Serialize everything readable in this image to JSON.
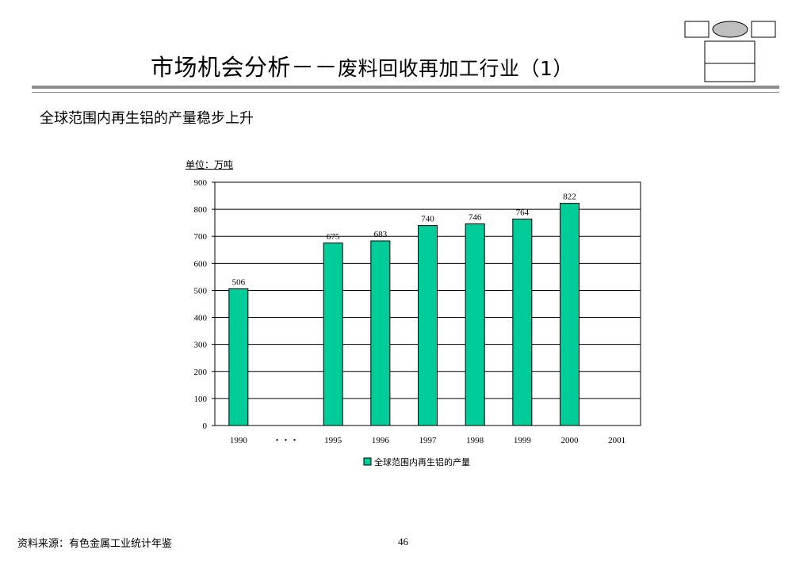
{
  "header": {
    "title_main": "市场机会分析－－",
    "title_sub": "废料回收再加工行业（1）",
    "subtitle": "全球范围内再生铝的产量稳步上升"
  },
  "unit_label": "单位：万吨",
  "chart_data": {
    "type": "bar",
    "categories": [
      "1990",
      "・・・",
      "1995",
      "1996",
      "1997",
      "1998",
      "1999",
      "2000",
      "2001"
    ],
    "series": [
      {
        "name": "全球范围内再生铝的产量",
        "values": [
          506,
          null,
          675,
          683,
          740,
          746,
          764,
          822,
          null
        ],
        "color": "#00cc99"
      }
    ],
    "ylim": [
      0,
      900
    ],
    "yticks": [
      0,
      100,
      200,
      300,
      400,
      500,
      600,
      700,
      800,
      900
    ],
    "grid": true,
    "legend_position": "bottom"
  },
  "footer": {
    "source": "资料来源：有色金属工业统计年鉴",
    "page": "46"
  },
  "colors": {
    "bar": "#00cc99",
    "rule": "#8c8c8c",
    "logo_ellipse": "#bfbfbf"
  }
}
